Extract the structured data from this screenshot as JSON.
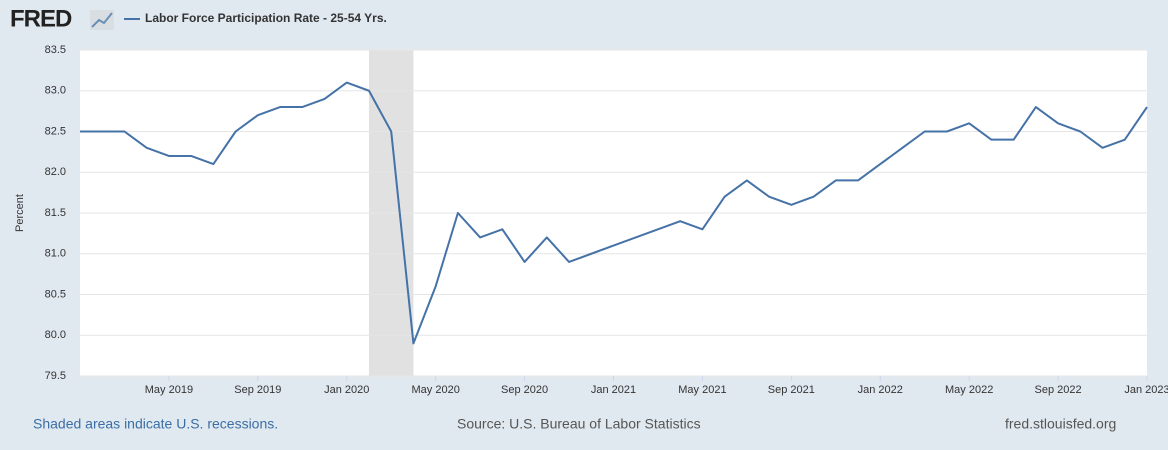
{
  "logo": "FRED",
  "chart_data": {
    "type": "line",
    "y_label": "Percent",
    "x": [
      "2019-01",
      "2019-02",
      "2019-03",
      "2019-04",
      "2019-05",
      "2019-06",
      "2019-07",
      "2019-08",
      "2019-09",
      "2019-10",
      "2019-11",
      "2019-12",
      "2020-01",
      "2020-02",
      "2020-03",
      "2020-04",
      "2020-05",
      "2020-06",
      "2020-07",
      "2020-08",
      "2020-09",
      "2020-10",
      "2020-11",
      "2020-12",
      "2021-01",
      "2021-02",
      "2021-03",
      "2021-04",
      "2021-05",
      "2021-06",
      "2021-07",
      "2021-08",
      "2021-09",
      "2021-10",
      "2021-11",
      "2021-12",
      "2022-01",
      "2022-02",
      "2022-03",
      "2022-04",
      "2022-05",
      "2022-06",
      "2022-07",
      "2022-08",
      "2022-09",
      "2022-10",
      "2022-11",
      "2022-12",
      "2023-01"
    ],
    "series": [
      {
        "name": "Labor Force Participation Rate - 25-54 Yrs.",
        "color": "#4572a7",
        "values": [
          82.5,
          82.5,
          82.5,
          82.3,
          82.2,
          82.2,
          82.1,
          82.5,
          82.7,
          82.8,
          82.8,
          82.9,
          83.1,
          83.0,
          82.5,
          79.9,
          80.6,
          81.5,
          81.2,
          81.3,
          80.9,
          81.2,
          80.9,
          81.0,
          81.1,
          81.2,
          81.3,
          81.4,
          81.3,
          81.7,
          81.9,
          81.7,
          81.6,
          81.7,
          81.9,
          81.9,
          82.1,
          82.3,
          82.5,
          82.5,
          82.6,
          82.4,
          82.4,
          82.8,
          82.6,
          82.5,
          82.3,
          82.4,
          82.8
        ]
      }
    ],
    "recessions": [
      {
        "start": "2020-02",
        "end": "2020-04"
      }
    ],
    "xlim": [
      "2019-01",
      "2023-01"
    ],
    "xticks": [
      {
        "value": "2019-05",
        "label": "May 2019"
      },
      {
        "value": "2019-09",
        "label": "Sep 2019"
      },
      {
        "value": "2020-01",
        "label": "Jan 2020"
      },
      {
        "value": "2020-05",
        "label": "May 2020"
      },
      {
        "value": "2020-09",
        "label": "Sep 2020"
      },
      {
        "value": "2021-01",
        "label": "Jan 2021"
      },
      {
        "value": "2021-05",
        "label": "May 2021"
      },
      {
        "value": "2021-09",
        "label": "Sep 2021"
      },
      {
        "value": "2022-01",
        "label": "Jan 2022"
      },
      {
        "value": "2022-05",
        "label": "May 2022"
      },
      {
        "value": "2022-09",
        "label": "Sep 2022"
      },
      {
        "value": "2023-01",
        "label": "Jan 2023"
      }
    ],
    "ylim": [
      79.5,
      83.5
    ],
    "yticks": [
      79.5,
      {
        "value": 80,
        "label": "80.0"
      },
      80.5,
      {
        "value": 81,
        "label": "81.0"
      },
      81.5,
      {
        "value": 82,
        "label": "82.0"
      },
      82.5,
      {
        "value": 83,
        "label": "83.0"
      },
      83.5
    ],
    "grid": true
  },
  "footer": {
    "left": "Shaded areas indicate U.S. recessions.",
    "center": "Source: U.S. Bureau of Labor Statistics",
    "right": "fred.stlouisfed.org"
  }
}
